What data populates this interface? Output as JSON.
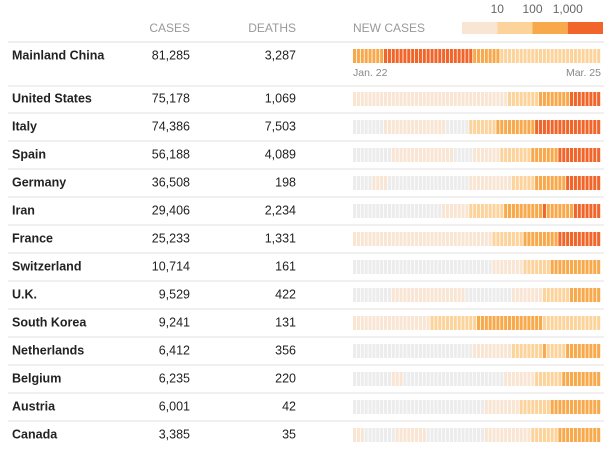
{
  "header": {
    "cases": "CASES",
    "deaths": "DEATHS",
    "new_cases": "NEW CASES"
  },
  "legend": {
    "thresholds": [
      10,
      100,
      {
        "value": 1000,
        "label": "1,000"
      }
    ]
  },
  "level_colors": [
    "#ececec",
    "#f9e5d3",
    "#fdd39c",
    "#f8a94c",
    "#f1652a"
  ],
  "date_start": "Jan. 22",
  "date_end": "Mar. 25",
  "rows": [
    {
      "country": "Mainland China",
      "cases": "81,285",
      "deaths": "3,287",
      "new_cases": [
        3,
        3,
        3,
        3,
        3,
        3,
        3,
        3,
        4,
        4,
        4,
        4,
        4,
        4,
        4,
        4,
        4,
        4,
        4,
        4,
        4,
        4,
        4,
        4,
        4,
        4,
        4,
        4,
        4,
        4,
        4,
        3,
        3,
        3,
        3,
        3,
        3,
        3,
        2,
        2,
        2,
        2,
        2,
        2,
        2,
        2,
        2,
        2,
        2,
        2,
        2,
        2,
        2,
        2,
        2,
        2,
        2,
        2,
        2,
        2,
        2,
        2,
        2,
        2
      ]
    },
    {
      "country": "United States",
      "cases": "75,178",
      "deaths": "1,069",
      "new_cases": [
        1,
        1,
        1,
        1,
        1,
        1,
        1,
        1,
        1,
        1,
        1,
        1,
        1,
        1,
        1,
        1,
        1,
        1,
        1,
        1,
        1,
        1,
        1,
        1,
        1,
        1,
        1,
        1,
        1,
        1,
        1,
        1,
        1,
        1,
        1,
        1,
        1,
        1,
        1,
        1,
        2,
        2,
        2,
        2,
        2,
        2,
        2,
        2,
        3,
        3,
        3,
        3,
        3,
        3,
        3,
        3,
        4,
        4,
        4,
        4,
        4,
        4,
        4,
        4
      ]
    },
    {
      "country": "Italy",
      "cases": "74,386",
      "deaths": "7,503",
      "new_cases": [
        0,
        0,
        0,
        0,
        0,
        0,
        0,
        0,
        1,
        1,
        1,
        1,
        1,
        1,
        1,
        1,
        1,
        1,
        1,
        1,
        1,
        1,
        1,
        1,
        0,
        0,
        0,
        0,
        0,
        0,
        2,
        2,
        2,
        2,
        2,
        2,
        2,
        3,
        3,
        3,
        3,
        3,
        3,
        3,
        3,
        3,
        3,
        4,
        4,
        4,
        4,
        4,
        4,
        4,
        4,
        4,
        4,
        4,
        4,
        4,
        4,
        4,
        4,
        4
      ]
    },
    {
      "country": "Spain",
      "cases": "56,188",
      "deaths": "4,089",
      "new_cases": [
        0,
        0,
        0,
        0,
        0,
        0,
        0,
        0,
        0,
        0,
        1,
        1,
        1,
        1,
        1,
        1,
        1,
        1,
        1,
        1,
        1,
        1,
        1,
        1,
        1,
        1,
        0,
        0,
        0,
        0,
        0,
        1,
        1,
        1,
        1,
        1,
        1,
        1,
        2,
        2,
        2,
        2,
        2,
        2,
        2,
        2,
        3,
        3,
        3,
        3,
        3,
        3,
        3,
        4,
        4,
        4,
        4,
        4,
        4,
        4,
        4,
        4,
        4,
        4
      ]
    },
    {
      "country": "Germany",
      "cases": "36,508",
      "deaths": "198",
      "new_cases": [
        0,
        0,
        0,
        0,
        0,
        1,
        1,
        1,
        1,
        0,
        0,
        0,
        0,
        0,
        0,
        0,
        0,
        0,
        0,
        0,
        0,
        0,
        0,
        0,
        0,
        0,
        0,
        0,
        0,
        0,
        1,
        1,
        1,
        1,
        1,
        1,
        1,
        1,
        1,
        1,
        1,
        2,
        2,
        2,
        2,
        2,
        2,
        3,
        3,
        3,
        3,
        3,
        3,
        3,
        3,
        4,
        4,
        4,
        4,
        4,
        4,
        4,
        4,
        4
      ]
    },
    {
      "country": "Iran",
      "cases": "29,406",
      "deaths": "2,234",
      "new_cases": [
        0,
        0,
        0,
        0,
        0,
        0,
        0,
        0,
        0,
        0,
        0,
        0,
        0,
        0,
        0,
        0,
        0,
        0,
        0,
        0,
        0,
        0,
        0,
        1,
        1,
        1,
        1,
        1,
        1,
        1,
        2,
        2,
        2,
        2,
        2,
        2,
        2,
        2,
        2,
        3,
        3,
        3,
        3,
        3,
        3,
        3,
        3,
        3,
        3,
        4,
        3,
        3,
        3,
        3,
        3,
        3,
        3,
        4,
        4,
        4,
        4,
        4,
        4,
        4
      ]
    },
    {
      "country": "France",
      "cases": "25,233",
      "deaths": "1,331",
      "new_cases": [
        1,
        1,
        1,
        1,
        1,
        1,
        1,
        1,
        1,
        1,
        1,
        1,
        1,
        1,
        1,
        1,
        1,
        1,
        1,
        1,
        1,
        1,
        1,
        1,
        1,
        1,
        1,
        1,
        1,
        1,
        1,
        1,
        1,
        1,
        1,
        1,
        2,
        2,
        2,
        2,
        2,
        2,
        2,
        2,
        3,
        3,
        3,
        3,
        3,
        3,
        3,
        3,
        3,
        4,
        4,
        4,
        4,
        4,
        4,
        4,
        4,
        4,
        4,
        4
      ]
    },
    {
      "country": "Switzerland",
      "cases": "10,714",
      "deaths": "161",
      "new_cases": [
        0,
        0,
        0,
        0,
        0,
        0,
        0,
        0,
        0,
        0,
        0,
        0,
        0,
        0,
        0,
        0,
        0,
        0,
        0,
        0,
        0,
        0,
        0,
        0,
        0,
        0,
        0,
        0,
        0,
        0,
        0,
        0,
        0,
        0,
        0,
        0,
        1,
        1,
        1,
        1,
        1,
        1,
        1,
        1,
        2,
        2,
        2,
        2,
        2,
        2,
        2,
        3,
        3,
        3,
        3,
        3,
        3,
        3,
        3,
        3,
        3,
        3,
        3,
        3
      ]
    },
    {
      "country": "U.K.",
      "cases": "9,529",
      "deaths": "422",
      "new_cases": [
        0,
        0,
        0,
        0,
        0,
        0,
        0,
        0,
        0,
        0,
        1,
        1,
        1,
        1,
        1,
        1,
        1,
        1,
        1,
        1,
        1,
        1,
        1,
        1,
        1,
        1,
        1,
        1,
        1,
        0,
        0,
        0,
        0,
        0,
        0,
        0,
        0,
        0,
        0,
        0,
        0,
        1,
        1,
        1,
        1,
        1,
        1,
        1,
        1,
        2,
        2,
        2,
        2,
        2,
        2,
        2,
        3,
        3,
        3,
        3,
        3,
        3,
        3,
        3
      ]
    },
    {
      "country": "South Korea",
      "cases": "9,241",
      "deaths": "131",
      "new_cases": [
        1,
        1,
        1,
        1,
        1,
        1,
        1,
        1,
        1,
        1,
        1,
        1,
        1,
        1,
        1,
        1,
        1,
        1,
        1,
        1,
        2,
        2,
        2,
        2,
        2,
        2,
        2,
        2,
        2,
        2,
        2,
        2,
        3,
        3,
        3,
        3,
        3,
        3,
        3,
        3,
        3,
        3,
        3,
        3,
        3,
        3,
        3,
        3,
        3,
        2,
        2,
        2,
        2,
        2,
        2,
        2,
        2,
        2,
        2,
        2,
        2,
        2,
        2,
        2
      ]
    },
    {
      "country": "Netherlands",
      "cases": "6,412",
      "deaths": "356",
      "new_cases": [
        0,
        0,
        0,
        0,
        0,
        0,
        0,
        0,
        0,
        0,
        0,
        0,
        0,
        0,
        0,
        0,
        0,
        0,
        0,
        0,
        0,
        0,
        0,
        0,
        0,
        0,
        0,
        0,
        0,
        0,
        0,
        1,
        1,
        1,
        1,
        1,
        1,
        1,
        1,
        1,
        1,
        2,
        2,
        2,
        2,
        2,
        2,
        2,
        2,
        3,
        2,
        2,
        2,
        2,
        2,
        3,
        3,
        3,
        3,
        3,
        3,
        3,
        3,
        3
      ]
    },
    {
      "country": "Belgium",
      "cases": "6,235",
      "deaths": "220",
      "new_cases": [
        0,
        0,
        0,
        0,
        0,
        0,
        0,
        0,
        0,
        0,
        1,
        1,
        1,
        0,
        0,
        0,
        0,
        0,
        0,
        0,
        0,
        0,
        0,
        0,
        0,
        0,
        0,
        0,
        0,
        0,
        0,
        0,
        0,
        0,
        0,
        0,
        0,
        0,
        0,
        1,
        1,
        1,
        1,
        1,
        1,
        1,
        1,
        2,
        2,
        2,
        2,
        2,
        2,
        2,
        3,
        3,
        3,
        3,
        3,
        3,
        3,
        3,
        3,
        3
      ]
    },
    {
      "country": "Austria",
      "cases": "6,001",
      "deaths": "42",
      "new_cases": [
        0,
        0,
        0,
        0,
        0,
        0,
        0,
        0,
        0,
        0,
        0,
        0,
        0,
        0,
        0,
        0,
        0,
        0,
        0,
        0,
        0,
        0,
        0,
        0,
        0,
        0,
        0,
        0,
        0,
        0,
        0,
        0,
        0,
        0,
        1,
        1,
        1,
        1,
        1,
        1,
        1,
        1,
        1,
        2,
        2,
        2,
        2,
        2,
        2,
        2,
        2,
        3,
        3,
        3,
        3,
        3,
        3,
        3,
        3,
        3,
        3,
        3,
        3,
        3
      ]
    },
    {
      "country": "Canada",
      "cases": "3,385",
      "deaths": "35",
      "new_cases": [
        1,
        1,
        1,
        0,
        0,
        0,
        0,
        0,
        0,
        0,
        0,
        1,
        1,
        1,
        1,
        1,
        1,
        1,
        1,
        0,
        0,
        0,
        0,
        0,
        0,
        0,
        0,
        0,
        0,
        0,
        0,
        0,
        0,
        0,
        1,
        1,
        1,
        1,
        1,
        1,
        1,
        1,
        1,
        1,
        1,
        1,
        2,
        2,
        2,
        2,
        2,
        2,
        2,
        3,
        3,
        3,
        3,
        3,
        3,
        3,
        3,
        3,
        3,
        3
      ]
    }
  ]
}
